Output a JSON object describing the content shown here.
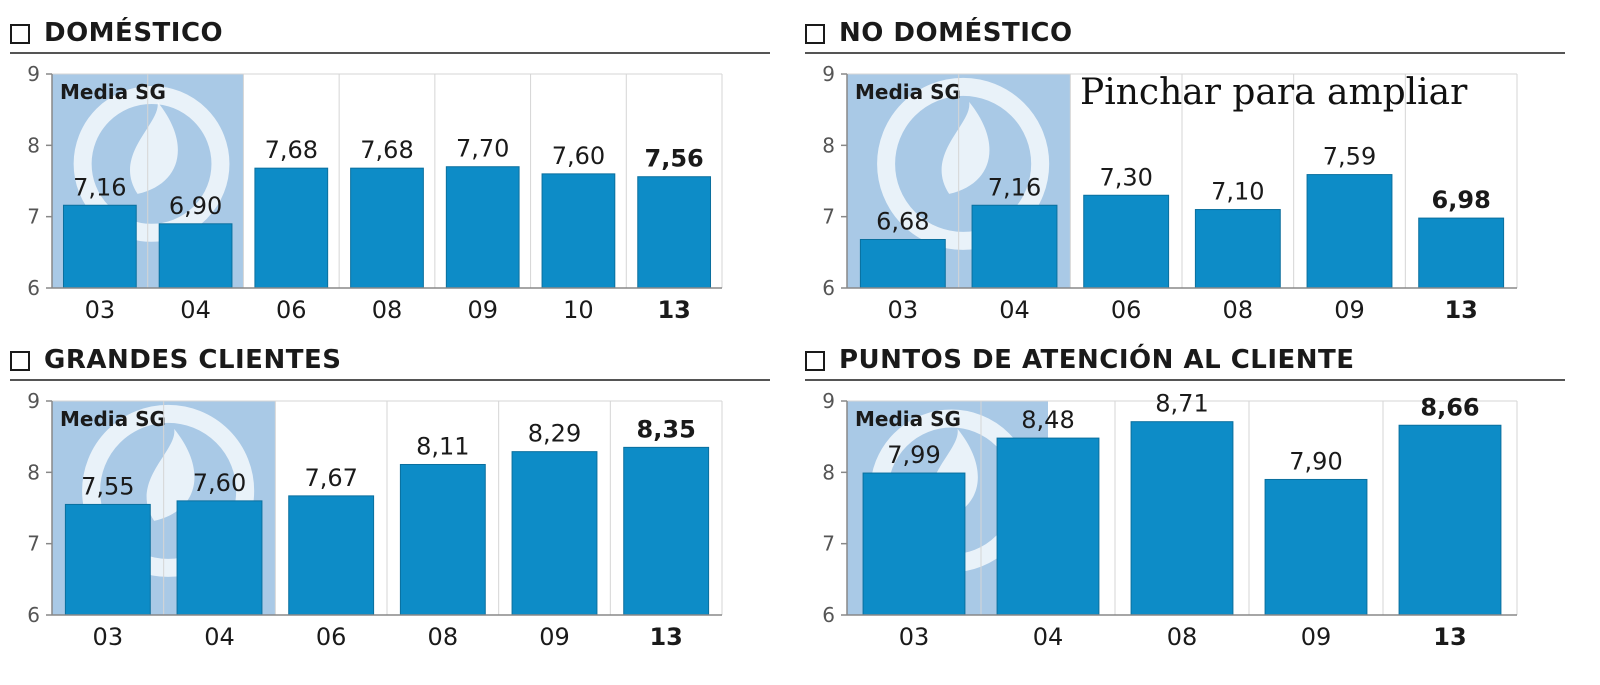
{
  "overlay_text": "Pinchar para ampliar",
  "colors": {
    "bar": "#0d8cc7",
    "bar_stroke": "#0a6f9e",
    "media_bg": "#a9c9e6",
    "media_logo": "#ffffff",
    "grid": "#d5d5d5",
    "axis": "#888888",
    "text": "#1a1a1a"
  },
  "chart_data": [
    {
      "type": "bar",
      "title": "DOMÉSTICO",
      "media_label": "Media SG",
      "categories": [
        "03",
        "04",
        "06",
        "08",
        "09",
        "10",
        "13"
      ],
      "values": [
        7.16,
        6.9,
        7.68,
        7.68,
        7.7,
        7.6,
        7.56
      ],
      "value_labels": [
        "7,16",
        "6,90",
        "7,68",
        "7,68",
        "7,70",
        "7,60",
        "7,56"
      ],
      "media_bars": 2,
      "ylim": [
        6,
        9
      ],
      "yticks": [
        "6",
        "7",
        "8",
        "9"
      ],
      "highlight_last": true,
      "grid": true
    },
    {
      "type": "bar",
      "title": "NO DOMÉSTICO",
      "media_label": "Media SG",
      "categories": [
        "03",
        "04",
        "06",
        "08",
        "09",
        "13"
      ],
      "values": [
        6.68,
        7.16,
        7.3,
        7.1,
        7.59,
        6.98
      ],
      "value_labels": [
        "6,68",
        "7,16",
        "7,30",
        "7,10",
        "7,59",
        "6,98"
      ],
      "media_bars": 2,
      "ylim": [
        6,
        9
      ],
      "yticks": [
        "6",
        "7",
        "8",
        "9"
      ],
      "highlight_last": true,
      "grid": true
    },
    {
      "type": "bar",
      "title": "GRANDES CLIENTES",
      "media_label": "Media SG",
      "categories": [
        "03",
        "04",
        "06",
        "08",
        "09",
        "13"
      ],
      "values": [
        7.55,
        7.6,
        7.67,
        8.11,
        8.29,
        8.35
      ],
      "value_labels": [
        "7,55",
        "7,60",
        "7,67",
        "8,11",
        "8,29",
        "8,35"
      ],
      "media_bars": 2,
      "ylim": [
        6,
        9
      ],
      "yticks": [
        "6",
        "7",
        "8",
        "9"
      ],
      "highlight_last": true,
      "grid": true
    },
    {
      "type": "bar",
      "title": "PUNTOS DE ATENCIÓN AL CLIENTE",
      "media_label": "Media SG",
      "categories": [
        "03",
        "04",
        "08",
        "09",
        "13"
      ],
      "values": [
        7.99,
        8.48,
        8.71,
        7.9,
        8.66
      ],
      "value_labels": [
        "7,99",
        "8,48",
        "8,71",
        "7,90",
        "8,66"
      ],
      "media_bars": 1.5,
      "ylim": [
        6,
        9
      ],
      "yticks": [
        "6",
        "7",
        "8",
        "9"
      ],
      "highlight_last": true,
      "grid": true
    }
  ]
}
